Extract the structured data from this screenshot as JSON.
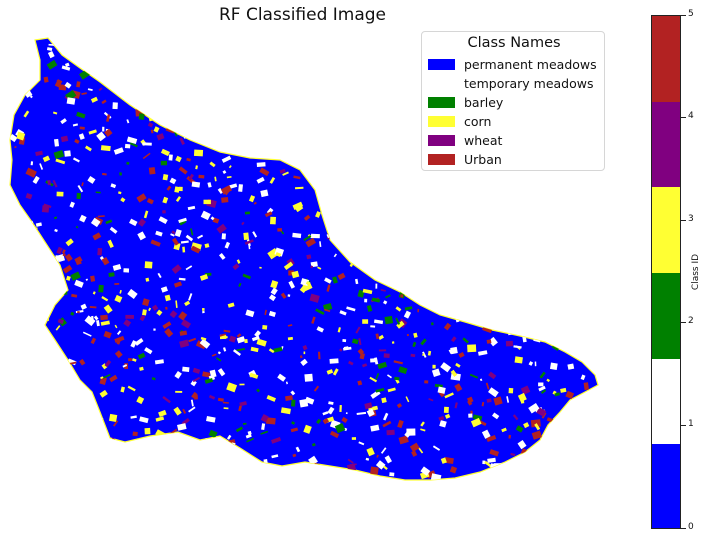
{
  "title": "RF Classified Image",
  "legend": {
    "title": "Class Names",
    "items": [
      {
        "label": "permanent meadows",
        "color": "#0000ff"
      },
      {
        "label": "temporary meadows",
        "color": "#ffffff"
      },
      {
        "label": "barley",
        "color": "#008000"
      },
      {
        "label": "corn",
        "color": "#ffff33"
      },
      {
        "label": "wheat",
        "color": "#800080"
      },
      {
        "label": "Urban",
        "color": "#b22222"
      }
    ]
  },
  "colorbar": {
    "label": "Class ID",
    "ticks": [
      "0",
      "1",
      "2",
      "3",
      "4",
      "5"
    ],
    "classes": [
      {
        "id": 0,
        "color": "#0000ff"
      },
      {
        "id": 1,
        "color": "#ffffff"
      },
      {
        "id": 2,
        "color": "#008000"
      },
      {
        "id": 3,
        "color": "#ffff33"
      },
      {
        "id": 4,
        "color": "#800080"
      },
      {
        "id": 5,
        "color": "#b22222"
      }
    ]
  }
}
